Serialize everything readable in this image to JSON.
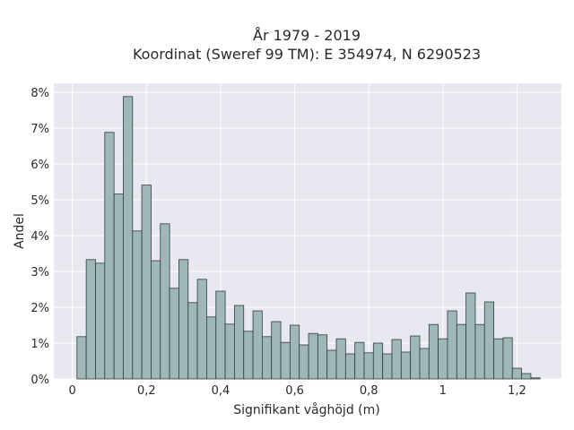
{
  "chart_data": {
    "type": "bar",
    "title_line1": "År 1979 - 2019",
    "title_line2": "Koordinat (Sweref 99 TM): E 354974, N 6290523",
    "xlabel": "Signifikant våghöjd (m)",
    "ylabel": "Andel",
    "xlim": [
      -0.05,
      1.32
    ],
    "ylim": [
      0,
      8.25
    ],
    "x_ticks": [
      {
        "value": 0,
        "label": "0"
      },
      {
        "value": 0.2,
        "label": "0,2"
      },
      {
        "value": 0.4,
        "label": "0,4"
      },
      {
        "value": 0.6,
        "label": "0,6"
      },
      {
        "value": 0.8,
        "label": "0,8"
      },
      {
        "value": 1.0,
        "label": "1"
      },
      {
        "value": 1.2,
        "label": "1,2"
      }
    ],
    "y_ticks": [
      {
        "value": 0,
        "label": "0%"
      },
      {
        "value": 1,
        "label": "1%"
      },
      {
        "value": 2,
        "label": "2%"
      },
      {
        "value": 3,
        "label": "3%"
      },
      {
        "value": 4,
        "label": "4%"
      },
      {
        "value": 5,
        "label": "5%"
      },
      {
        "value": 6,
        "label": "6%"
      },
      {
        "value": 7,
        "label": "7%"
      },
      {
        "value": 8,
        "label": "8%"
      }
    ],
    "bin_width": 0.025,
    "bin_start": 0.0125,
    "values": [
      1.18,
      3.33,
      3.23,
      6.88,
      5.16,
      7.88,
      4.13,
      5.41,
      3.3,
      4.33,
      2.53,
      3.33,
      2.13,
      2.78,
      1.73,
      2.45,
      1.53,
      2.05,
      1.33,
      1.9,
      1.18,
      1.6,
      1.02,
      1.5,
      0.95,
      1.27,
      1.23,
      0.8,
      1.12,
      0.7,
      1.02,
      0.73,
      1.0,
      0.7,
      1.1,
      0.75,
      1.2,
      0.85,
      1.52,
      1.12,
      1.9,
      1.52,
      2.4,
      1.52,
      2.15,
      1.12,
      1.15,
      0.3,
      0.15,
      0.03
    ],
    "grid": true,
    "colors": {
      "plot_bg": "#e8e8f0",
      "grid": "#ffffff",
      "bar_fill": "#9fb7b7",
      "bar_edge": "#2f3e3e"
    }
  }
}
